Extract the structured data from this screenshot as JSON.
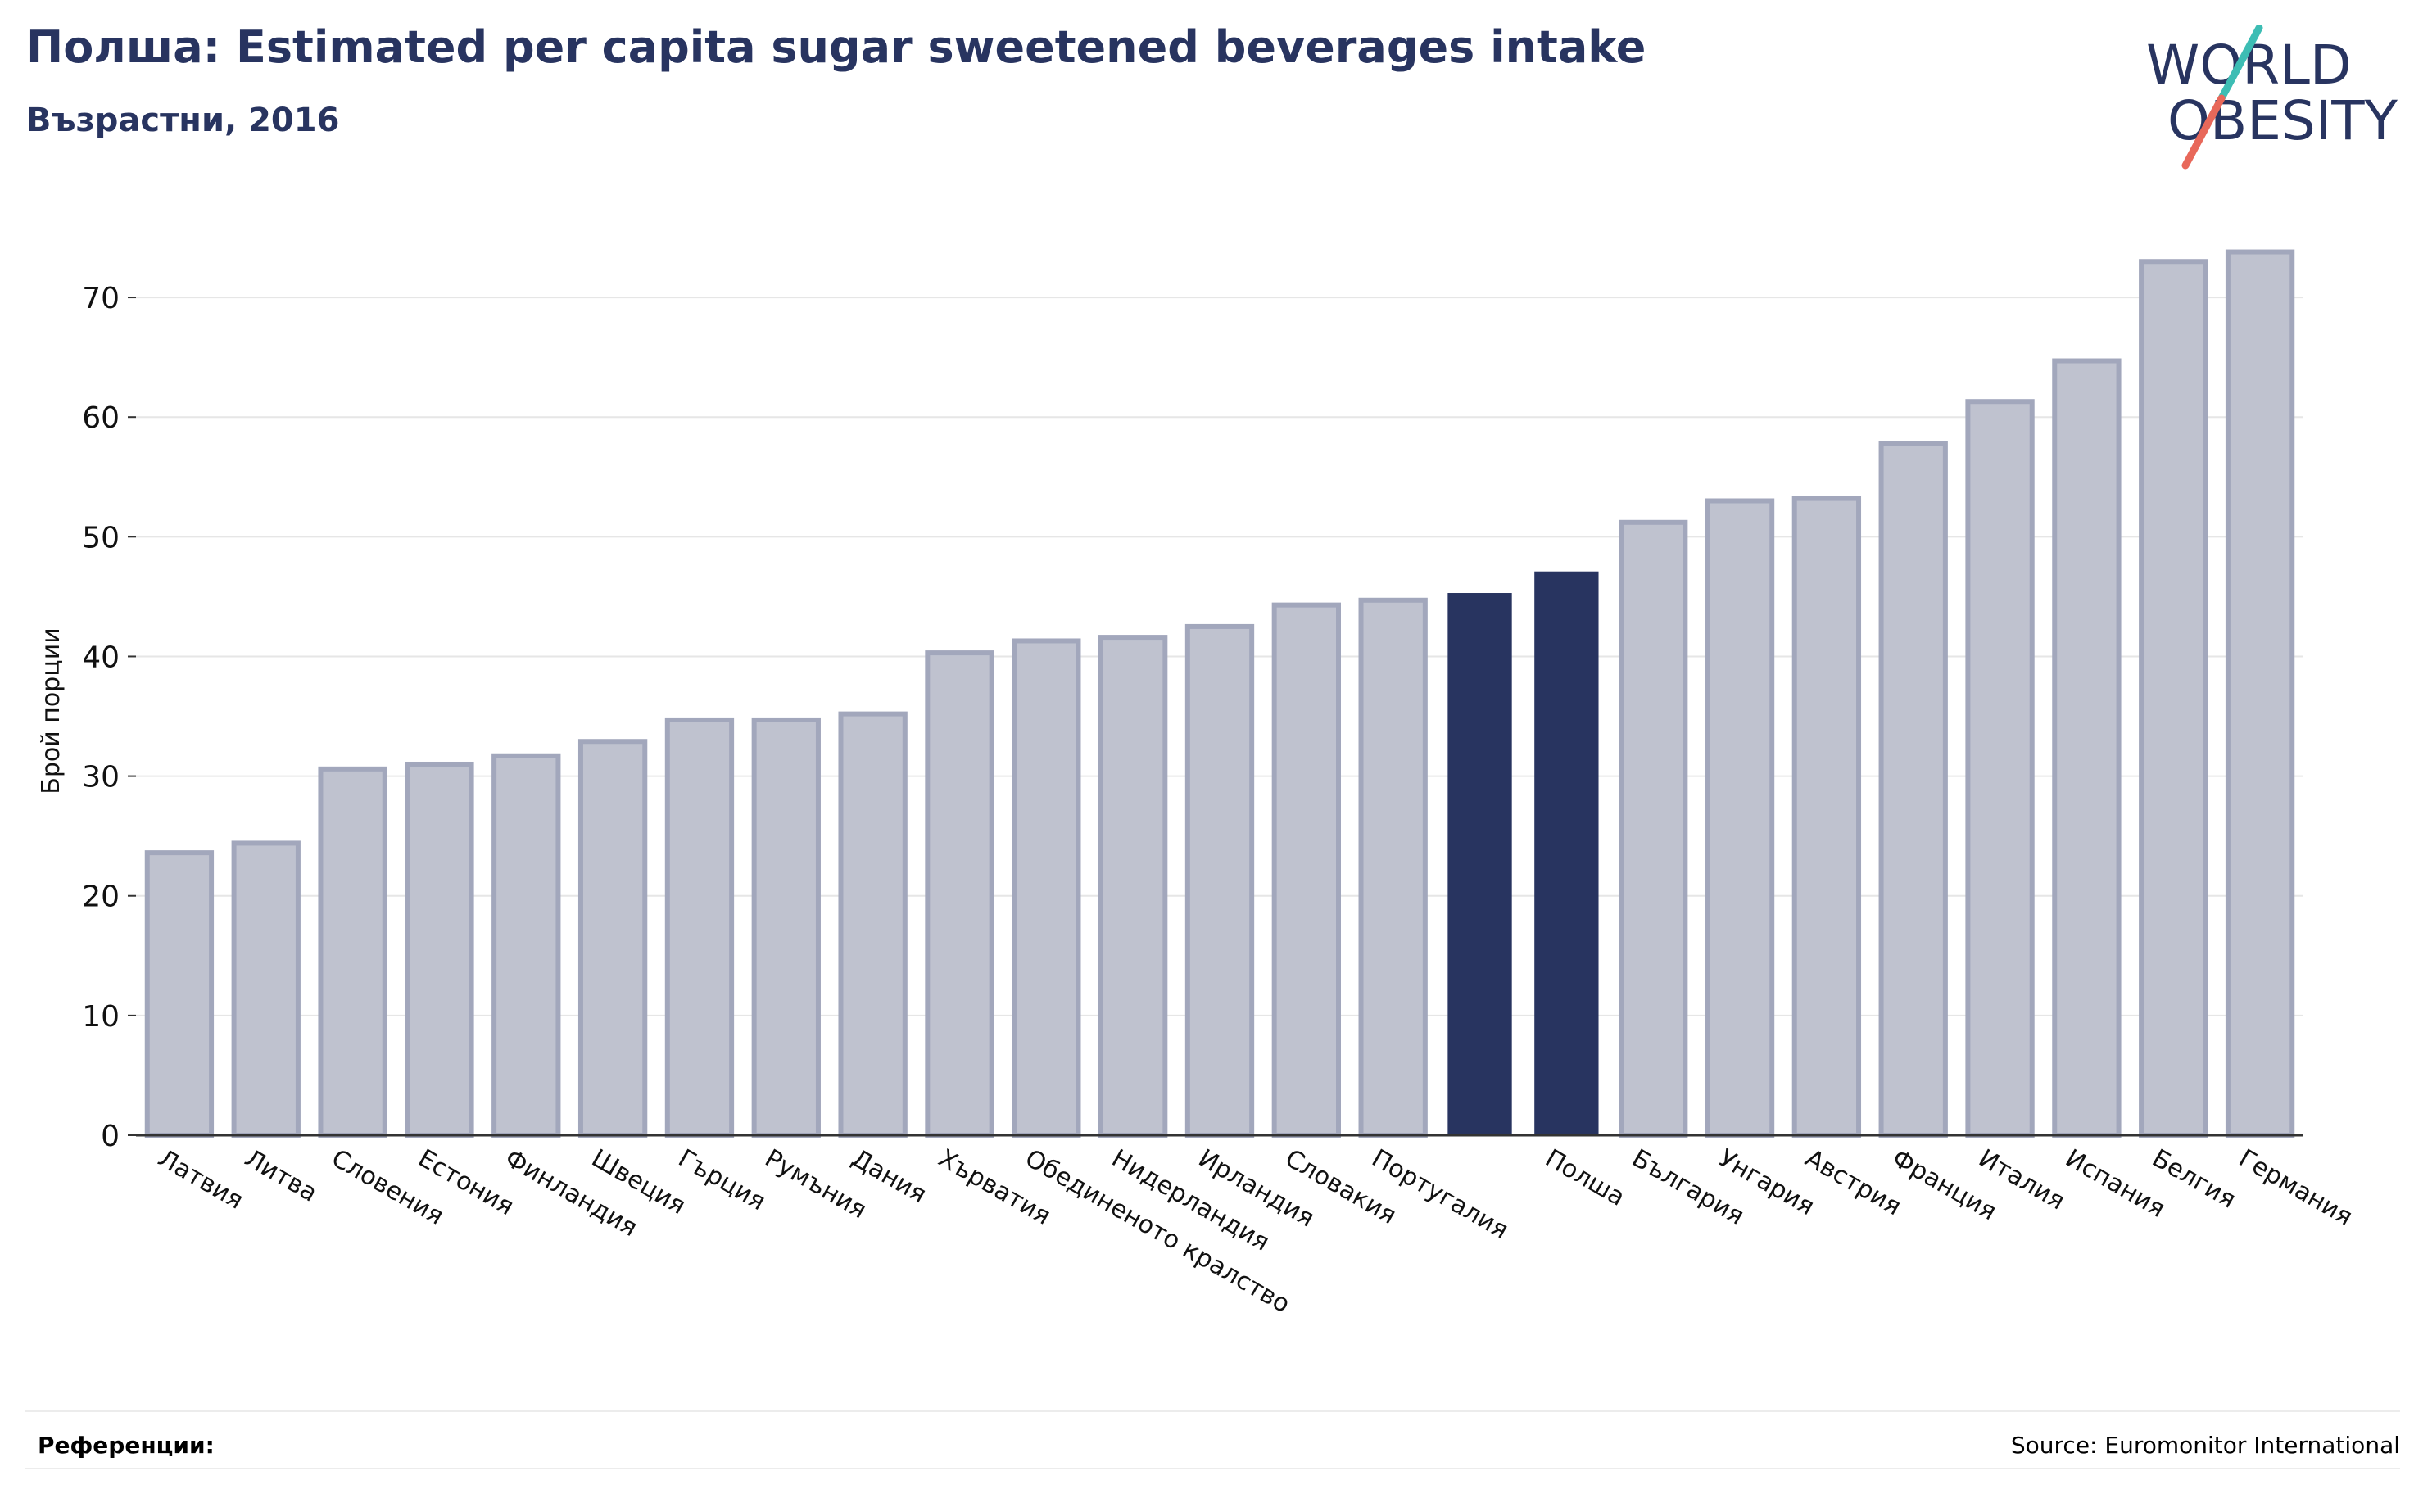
{
  "header": {
    "title": "Полша: Estimated per capita sugar sweetened beverages intake",
    "subtitle": "Възрастни, 2016"
  },
  "logo": {
    "line1": "WORLD",
    "line2": "OBESITY"
  },
  "footer": {
    "references_label": "Референции:",
    "source": "Source: Euromonitor International"
  },
  "colors": {
    "bar_fill": "#bfc2cf",
    "bar_stroke": "#a2a7bc",
    "highlight": "#283460",
    "text_dark": "#283460",
    "grid": "#e6e6e6",
    "logo_slash_top": "#3dbdb4",
    "logo_slash_bottom": "#e8685a"
  },
  "chart_data": {
    "type": "bar",
    "ylabel": "Брой порции",
    "xlabel": "",
    "ylim": [
      0,
      75
    ],
    "yticks": [
      0,
      10,
      20,
      30,
      40,
      50,
      60,
      70
    ],
    "grid": true,
    "categories": [
      "Латвия",
      "Литва",
      "Словения",
      "Естония",
      "Финландия",
      "Швеция",
      "Гърция",
      "Румъния",
      "Дания",
      "Хърватия",
      "Обединеното кралство",
      "Нидерландия",
      "Ирландия",
      "Словакия",
      "Португалия",
      "",
      "Полша",
      "България",
      "Унгария",
      "Австрия",
      "Франция",
      "Италия",
      "Испания",
      "Белгия",
      "Германия"
    ],
    "values": [
      23.6,
      24.4,
      30.6,
      31.0,
      31.7,
      32.9,
      34.7,
      34.7,
      35.2,
      40.3,
      41.3,
      41.6,
      42.5,
      44.3,
      44.7,
      45.3,
      47.1,
      51.2,
      53.0,
      53.2,
      57.8,
      61.3,
      64.7,
      73.0,
      73.8
    ],
    "highlight": [
      "",
      "Полша"
    ]
  }
}
